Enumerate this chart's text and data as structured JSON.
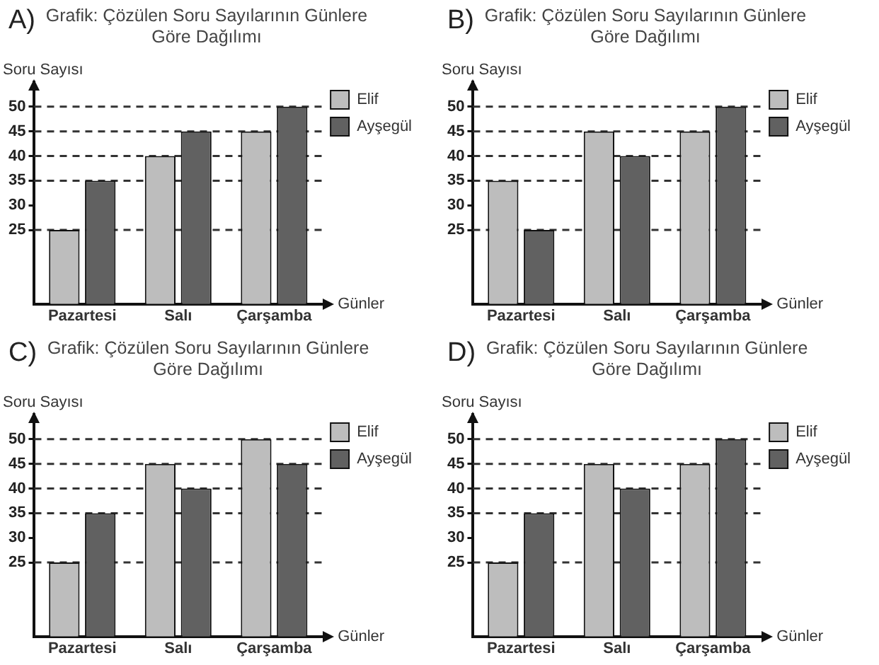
{
  "chart_data": [
    {
      "type": "bar",
      "title": "Grafik: Çözülen Soru Sayılarının Günlere Göre Dağılımı",
      "annotations": [
        "A)"
      ],
      "ylabel": "Soru Sayısı",
      "xlabel": "Günler",
      "categories": [
        "Pazartesi",
        "Salı",
        "Çarşamba"
      ],
      "series": [
        {
          "name": "Elif",
          "color": "#bdbdbd",
          "values": [
            25,
            40,
            45
          ]
        },
        {
          "name": "Ayşegül",
          "color": "#616161",
          "values": [
            35,
            45,
            50
          ]
        }
      ],
      "ylim": [
        10,
        55
      ],
      "yticks": [
        25,
        30,
        35,
        40,
        45,
        50
      ],
      "grid": false,
      "legend": "top right",
      "ref_lines": [
        {
          "axis": "y",
          "value": 25,
          "line_style": "dashed"
        },
        {
          "axis": "y",
          "value": 35,
          "line_style": "dashed"
        },
        {
          "axis": "y",
          "value": 40,
          "line_style": "dashed"
        },
        {
          "axis": "y",
          "value": 45,
          "line_style": "dashed"
        },
        {
          "axis": "y",
          "value": 50,
          "line_style": "dashed"
        }
      ]
    },
    {
      "type": "bar",
      "title": "Grafik: Çözülen Soru Sayılarının Günlere Göre Dağılımı",
      "annotations": [
        "B)"
      ],
      "ylabel": "Soru Sayısı",
      "xlabel": "Günler",
      "categories": [
        "Pazartesi",
        "Salı",
        "Çarşamba"
      ],
      "series": [
        {
          "name": "Elif",
          "color": "#bdbdbd",
          "values": [
            35,
            45,
            45
          ]
        },
        {
          "name": "Ayşegül",
          "color": "#616161",
          "values": [
            25,
            40,
            50
          ]
        }
      ],
      "ylim": [
        10,
        55
      ],
      "yticks": [
        25,
        30,
        35,
        40,
        45,
        50
      ],
      "grid": false,
      "legend": "top right",
      "ref_lines": [
        {
          "axis": "y",
          "value": 25,
          "line_style": "dashed"
        },
        {
          "axis": "y",
          "value": 35,
          "line_style": "dashed"
        },
        {
          "axis": "y",
          "value": 40,
          "line_style": "dashed"
        },
        {
          "axis": "y",
          "value": 45,
          "line_style": "dashed"
        },
        {
          "axis": "y",
          "value": 50,
          "line_style": "dashed"
        }
      ]
    },
    {
      "type": "bar",
      "title": "Grafik: Çözülen Soru Sayılarının Günlere Göre Dağılımı",
      "annotations": [
        "C)"
      ],
      "ylabel": "Soru Sayısı",
      "xlabel": "Günler",
      "categories": [
        "Pazartesi",
        "Salı",
        "Çarşamba"
      ],
      "series": [
        {
          "name": "Elif",
          "color": "#bdbdbd",
          "values": [
            25,
            45,
            50
          ]
        },
        {
          "name": "Ayşegül",
          "color": "#616161",
          "values": [
            35,
            40,
            45
          ]
        }
      ],
      "ylim": [
        10,
        55
      ],
      "yticks": [
        25,
        30,
        35,
        40,
        45,
        50
      ],
      "grid": false,
      "legend": "top right",
      "ref_lines": [
        {
          "axis": "y",
          "value": 25,
          "line_style": "dashed"
        },
        {
          "axis": "y",
          "value": 35,
          "line_style": "dashed"
        },
        {
          "axis": "y",
          "value": 40,
          "line_style": "dashed"
        },
        {
          "axis": "y",
          "value": 45,
          "line_style": "dashed"
        },
        {
          "axis": "y",
          "value": 50,
          "line_style": "dashed"
        }
      ]
    },
    {
      "type": "bar",
      "title": "Grafik: Çözülen Soru Sayılarının Günlere Göre Dağılımı",
      "annotations": [
        "D)"
      ],
      "ylabel": "Soru Sayısı",
      "xlabel": "Günler",
      "categories": [
        "Pazartesi",
        "Salı",
        "Çarşamba"
      ],
      "series": [
        {
          "name": "Elif",
          "color": "#bdbdbd",
          "values": [
            25,
            45,
            45
          ]
        },
        {
          "name": "Ayşegül",
          "color": "#616161",
          "values": [
            35,
            40,
            50
          ]
        }
      ],
      "ylim": [
        10,
        55
      ],
      "yticks": [
        25,
        30,
        35,
        40,
        45,
        50
      ],
      "grid": false,
      "legend": "top right",
      "ref_lines": [
        {
          "axis": "y",
          "value": 25,
          "line_style": "dashed"
        },
        {
          "axis": "y",
          "value": 35,
          "line_style": "dashed"
        },
        {
          "axis": "y",
          "value": 40,
          "line_style": "dashed"
        },
        {
          "axis": "y",
          "value": 45,
          "line_style": "dashed"
        },
        {
          "axis": "y",
          "value": 50,
          "line_style": "dashed"
        }
      ]
    }
  ]
}
